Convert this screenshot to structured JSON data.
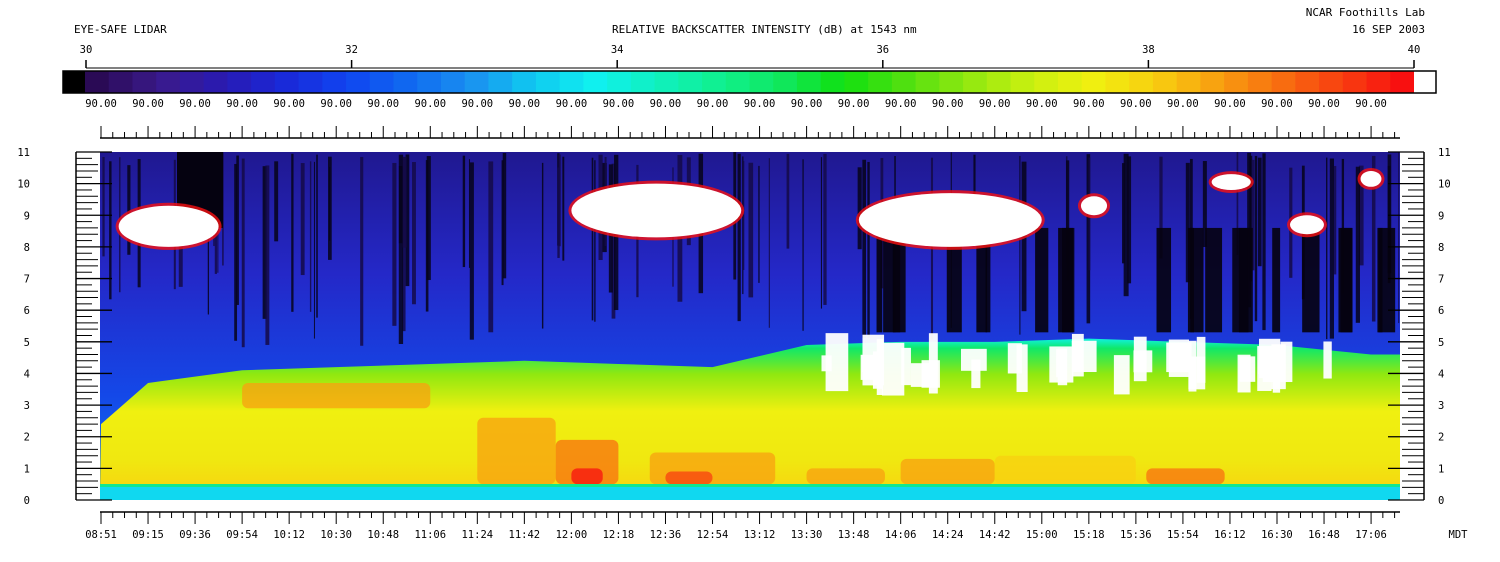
{
  "header": {
    "left_title": "EYE-SAFE LIDAR",
    "center_title": "RELATIVE BACKSCATTER INTENSITY (dB) at 1543 nm",
    "site": "NCAR Foothills Lab",
    "date": "16 SEP 2003"
  },
  "colorbar": {
    "min": 30,
    "max": 40,
    "tick_labels": [
      "30",
      "32",
      "34",
      "36",
      "38",
      "40"
    ],
    "segment_label": "90.00",
    "segment_count": 28,
    "stops": [
      "#000000",
      "#2a0a55",
      "#3a1a8a",
      "#2a1ab0",
      "#1a28d8",
      "#1044f0",
      "#1068f0",
      "#1a90f0",
      "#10c8f0",
      "#10f0f0",
      "#10f0c0",
      "#10f090",
      "#10e860",
      "#10e010",
      "#50e010",
      "#90e810",
      "#c8f010",
      "#f0f010",
      "#f8d010",
      "#f8a010",
      "#f87010",
      "#f84010",
      "#f81010",
      "#ffffff"
    ]
  },
  "chart_data": {
    "type": "heatmap",
    "title": "RELATIVE BACKSCATTER INTENSITY (dB) at 1543 nm",
    "xlabel": "MDT",
    "ylabel": "",
    "x_tick_labels": [
      "08:51",
      "09:15",
      "09:36",
      "09:54",
      "10:12",
      "10:30",
      "10:48",
      "11:06",
      "11:24",
      "11:42",
      "12:00",
      "12:18",
      "12:36",
      "12:54",
      "13:12",
      "13:30",
      "13:48",
      "14:06",
      "14:24",
      "14:42",
      "15:00",
      "15:18",
      "15:36",
      "15:54",
      "16:12",
      "16:30",
      "16:48",
      "17:06"
    ],
    "y_ticks": [
      0,
      1,
      2,
      3,
      4,
      5,
      6,
      7,
      8,
      9,
      10,
      11
    ],
    "ylim": [
      0,
      11
    ],
    "colorbar_range_dB": [
      30,
      40
    ],
    "grid": false,
    "boundary_layer_top_km": [
      {
        "time": "08:51",
        "h": 2.4
      },
      {
        "time": "09:15",
        "h": 3.7
      },
      {
        "time": "09:54",
        "h": 4.1
      },
      {
        "time": "10:30",
        "h": 4.2
      },
      {
        "time": "11:06",
        "h": 4.3
      },
      {
        "time": "11:42",
        "h": 4.4
      },
      {
        "time": "12:18",
        "h": 4.3
      },
      {
        "time": "12:54",
        "h": 4.2
      },
      {
        "time": "13:30",
        "h": 4.9
      },
      {
        "time": "14:06",
        "h": 5.0
      },
      {
        "time": "14:42",
        "h": 5.0
      },
      {
        "time": "15:18",
        "h": 5.1
      },
      {
        "time": "15:54",
        "h": 5.0
      },
      {
        "time": "16:30",
        "h": 4.9
      },
      {
        "time": "17:06",
        "h": 4.6
      }
    ],
    "cloud_features": [
      {
        "start": "09:00",
        "end": "09:45",
        "base_km": 8.0,
        "top_km": 9.3
      },
      {
        "start": "12:00",
        "end": "13:05",
        "base_km": 8.3,
        "top_km": 10.0
      },
      {
        "start": "13:50",
        "end": "15:00",
        "base_km": 8.0,
        "top_km": 9.7
      },
      {
        "start": "15:15",
        "end": "15:25",
        "base_km": 9.0,
        "top_km": 9.6
      },
      {
        "start": "16:05",
        "end": "16:20",
        "base_km": 9.8,
        "top_km": 10.3
      },
      {
        "start": "16:35",
        "end": "16:48",
        "base_km": 8.4,
        "top_km": 9.0
      },
      {
        "start": "17:02",
        "end": "17:10",
        "base_km": 9.9,
        "top_km": 10.4
      }
    ]
  }
}
